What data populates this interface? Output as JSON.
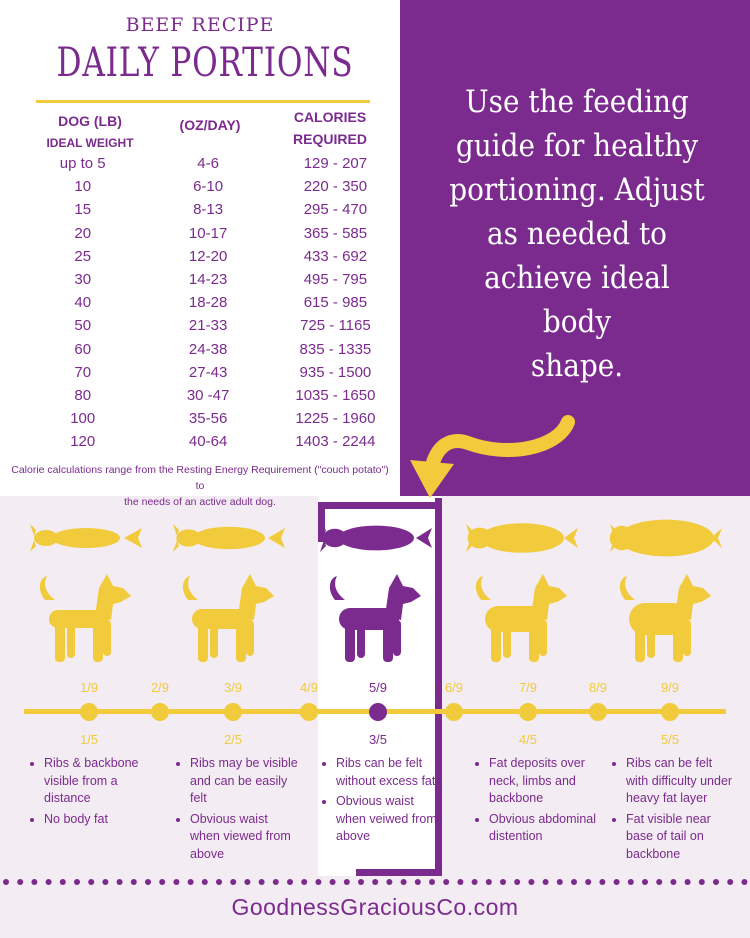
{
  "header": {
    "recipe": "BEEF RECIPE",
    "title": "DAILY PORTIONS"
  },
  "table": {
    "col1_header": "DOG (LB)",
    "col1_sub": "IDEAL WEIGHT",
    "col2_header": "(OZ/DAY)",
    "col3_header": "CALORIES",
    "col3_sub": "REQUIRED",
    "rows": [
      [
        "up to 5",
        "4-6",
        "129 - 207"
      ],
      [
        "10",
        "6-10",
        "220 - 350"
      ],
      [
        "15",
        "8-13",
        "295 - 470"
      ],
      [
        "20",
        "10-17",
        "365 - 585"
      ],
      [
        "25",
        "12-20",
        "433 - 692"
      ],
      [
        "30",
        "14-23",
        "495 - 795"
      ],
      [
        "40",
        "18-28",
        "615 - 985"
      ],
      [
        "50",
        "21-33",
        "725 - 1165"
      ],
      [
        "60",
        "24-38",
        "835 - 1335"
      ],
      [
        "70",
        "27-43",
        "935 - 1500"
      ],
      [
        "80",
        "30 -47",
        "1035 - 1650"
      ],
      [
        "100",
        "35-56",
        "1225 - 1960"
      ],
      [
        "120",
        "40-64",
        "1403 - 2244"
      ]
    ]
  },
  "note": {
    "line1": "Calorie calculations range from the Resting Energy Requirement (\"couch potato\") to",
    "line2": "the needs of an active adult dog."
  },
  "guide_text": {
    "line1": "Use the feeding",
    "line2": "guide for healthy",
    "line3": "portioning. Adjust",
    "line4": "as needed to",
    "line5": "achieve ideal body",
    "line6": "shape."
  },
  "scale": {
    "top_labels": [
      "1/9",
      "2/9",
      "3/9",
      "4/9",
      "5/9",
      "6/9",
      "7/9",
      "8/9",
      "9/9"
    ],
    "bottom_labels": [
      "1/5",
      "2/5",
      "3/5",
      "4/5",
      "5/5"
    ],
    "selected": "5/9"
  },
  "descriptions": [
    [
      "Ribs & backbone visible from a distance",
      "No body fat"
    ],
    [
      "Ribs may be visible and can be easily felt",
      "Obvious waist when viewed from above"
    ],
    [
      "Ribs can be felt without excess fat",
      "Obvious waist when veiwed from above"
    ],
    [
      "Fat deposits over neck, limbs and backbone",
      "Obvious abdominal distention"
    ],
    [
      "Ribs can be felt with difficulty under heavy fat layer",
      "Fat visible near base of tail on backbone"
    ]
  ],
  "footer": {
    "url": "GoodnessGraciousCo.com"
  },
  "colors": {
    "purple": "#7b2a8e",
    "yellow": "#f1cb3c",
    "background": "#f3ecf2"
  },
  "icons": [
    "dog-top-view-icon",
    "dog-side-view-icon",
    "arrow-icon"
  ]
}
